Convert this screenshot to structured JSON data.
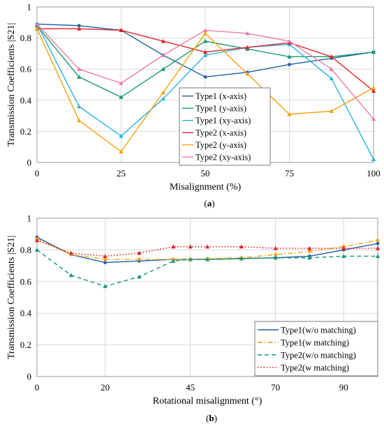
{
  "chart_data": [
    {
      "type": "line",
      "panel_label": "(a)",
      "xlabel": "Misalignment (%)",
      "ylabel": "Transmission Coefficients |S21|",
      "xlim": [
        0,
        100
      ],
      "ylim": [
        0,
        1
      ],
      "xticks": [
        "0",
        "25",
        "50",
        "75",
        "100"
      ],
      "xtick_values": [
        0,
        25,
        50,
        75,
        100
      ],
      "yticks": [
        "0",
        "0.2",
        "0.4",
        "0.6",
        "0.8",
        "1"
      ],
      "ytick_values": [
        0,
        0.2,
        0.4,
        0.6,
        0.8,
        1
      ],
      "grid": true,
      "legend_position": "center-left",
      "x": [
        0,
        12.5,
        25,
        37.5,
        50,
        62.5,
        75,
        87.5,
        100
      ],
      "series": [
        {
          "name": "Type1 (x-axis)",
          "color": "#1f5fa8",
          "marker": "circle",
          "dash": "solid",
          "values": [
            0.89,
            0.88,
            0.85,
            0.69,
            0.55,
            0.58,
            0.63,
            0.67,
            0.71
          ]
        },
        {
          "name": "Type1 (y-axis)",
          "color": "#1a9a6c",
          "marker": "triangle",
          "dash": "solid",
          "values": [
            0.88,
            0.55,
            0.42,
            0.6,
            0.78,
            0.73,
            0.68,
            0.68,
            0.71
          ]
        },
        {
          "name": "Type1 (xy-axis)",
          "color": "#27b4e0",
          "marker": "triangle",
          "dash": "solid",
          "values": [
            0.89,
            0.36,
            0.17,
            0.41,
            0.69,
            0.74,
            0.76,
            0.54,
            0.02
          ]
        },
        {
          "name": "Type2 (x-axis)",
          "color": "#e0242a",
          "marker": "triangle",
          "dash": "solid",
          "values": [
            0.86,
            0.86,
            0.85,
            0.78,
            0.71,
            0.74,
            0.77,
            0.68,
            0.46
          ]
        },
        {
          "name": "Type2 (y-axis)",
          "color": "#f5a10e",
          "marker": "triangle",
          "dash": "solid",
          "values": [
            0.86,
            0.27,
            0.07,
            0.45,
            0.83,
            0.57,
            0.31,
            0.33,
            0.48
          ]
        },
        {
          "name": "Type2 (xy-axis)",
          "color": "#e97cad",
          "marker": "triangle",
          "dash": "solid",
          "values": [
            0.89,
            0.6,
            0.51,
            0.69,
            0.85,
            0.83,
            0.78,
            0.6,
            0.28
          ]
        }
      ]
    },
    {
      "type": "line",
      "panel_label": "(b)",
      "xlabel": "Rotational misalignment (°)",
      "ylabel": "Transmission Coefficients |S21|",
      "xlim": [
        0,
        100
      ],
      "ylim": [
        0,
        1
      ],
      "xticks": [
        "0",
        "20",
        "45",
        "70",
        "90"
      ],
      "xtick_values": [
        0,
        20,
        45,
        70,
        90
      ],
      "yticks": [
        "0",
        "0.2",
        "0.4",
        "0.6",
        "0.8",
        "1"
      ],
      "ytick_values": [
        0,
        0.2,
        0.4,
        0.6,
        0.8,
        1
      ],
      "grid": true,
      "legend_position": "bottom-right",
      "x": [
        0,
        10,
        20,
        30,
        40,
        45,
        50,
        60,
        70,
        80,
        90,
        100
      ],
      "series": [
        {
          "name": "Type1(w/o matching)",
          "color": "#1f5fa8",
          "marker": "circle",
          "dash": "solid",
          "values": [
            0.88,
            0.77,
            0.72,
            0.73,
            0.74,
            0.74,
            0.74,
            0.745,
            0.75,
            0.76,
            0.8,
            0.84
          ]
        },
        {
          "name": "Type1(w matching)",
          "color": "#f5a10e",
          "marker": "circle",
          "dash": "dashdot",
          "values": [
            0.87,
            0.77,
            0.74,
            0.74,
            0.74,
            0.74,
            0.745,
            0.75,
            0.77,
            0.79,
            0.82,
            0.86
          ]
        },
        {
          "name": "Type2(w/o matching)",
          "color": "#1a9a6c",
          "marker": "triangle",
          "dash": "dashed",
          "values": [
            0.8,
            0.64,
            0.57,
            0.63,
            0.73,
            0.74,
            0.74,
            0.745,
            0.75,
            0.75,
            0.76,
            0.76
          ]
        },
        {
          "name": "Type2(w matching)",
          "color": "#e0242a",
          "marker": "triangle",
          "dash": "dotted",
          "values": [
            0.86,
            0.78,
            0.76,
            0.78,
            0.82,
            0.82,
            0.82,
            0.82,
            0.81,
            0.81,
            0.81,
            0.81
          ]
        }
      ]
    }
  ]
}
